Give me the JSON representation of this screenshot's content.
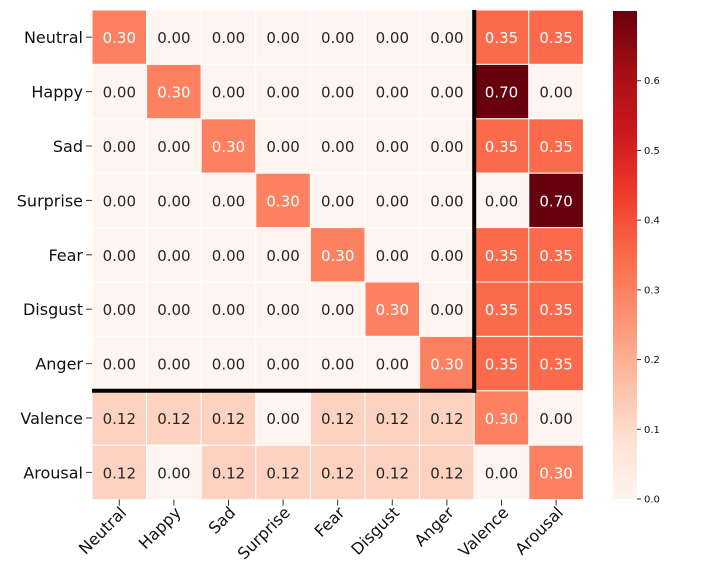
{
  "chart_data": {
    "type": "heatmap",
    "title": "",
    "xlabel": "",
    "ylabel": "",
    "rows": [
      "Neutral",
      "Happy",
      "Sad",
      "Surprise",
      "Fear",
      "Disgust",
      "Anger",
      "Valence",
      "Arousal"
    ],
    "columns": [
      "Neutral",
      "Happy",
      "Sad",
      "Surprise",
      "Fear",
      "Disgust",
      "Anger",
      "Valence",
      "Arousal"
    ],
    "values": [
      [
        0.3,
        0.0,
        0.0,
        0.0,
        0.0,
        0.0,
        0.0,
        0.35,
        0.35
      ],
      [
        0.0,
        0.3,
        0.0,
        0.0,
        0.0,
        0.0,
        0.0,
        0.7,
        0.0
      ],
      [
        0.0,
        0.0,
        0.3,
        0.0,
        0.0,
        0.0,
        0.0,
        0.35,
        0.35
      ],
      [
        0.0,
        0.0,
        0.0,
        0.3,
        0.0,
        0.0,
        0.0,
        0.0,
        0.7
      ],
      [
        0.0,
        0.0,
        0.0,
        0.0,
        0.3,
        0.0,
        0.0,
        0.35,
        0.35
      ],
      [
        0.0,
        0.0,
        0.0,
        0.0,
        0.0,
        0.3,
        0.0,
        0.35,
        0.35
      ],
      [
        0.0,
        0.0,
        0.0,
        0.0,
        0.0,
        0.0,
        0.3,
        0.35,
        0.35
      ],
      [
        0.12,
        0.12,
        0.12,
        0.0,
        0.12,
        0.12,
        0.12,
        0.3,
        0.0
      ],
      [
        0.12,
        0.0,
        0.12,
        0.12,
        0.12,
        0.12,
        0.12,
        0.0,
        0.3
      ]
    ],
    "value_range": [
      0,
      0.7
    ],
    "colorbar": {
      "ticks": [
        0.0,
        0.1,
        0.2,
        0.3,
        0.4,
        0.5,
        0.6
      ],
      "tick_labels": [
        "0.0",
        "0.1",
        "0.2",
        "0.3",
        "0.4",
        "0.5",
        "0.6"
      ]
    },
    "colormap": "Reds",
    "block_separator": {
      "after_row": 7,
      "after_column": 7
    }
  }
}
